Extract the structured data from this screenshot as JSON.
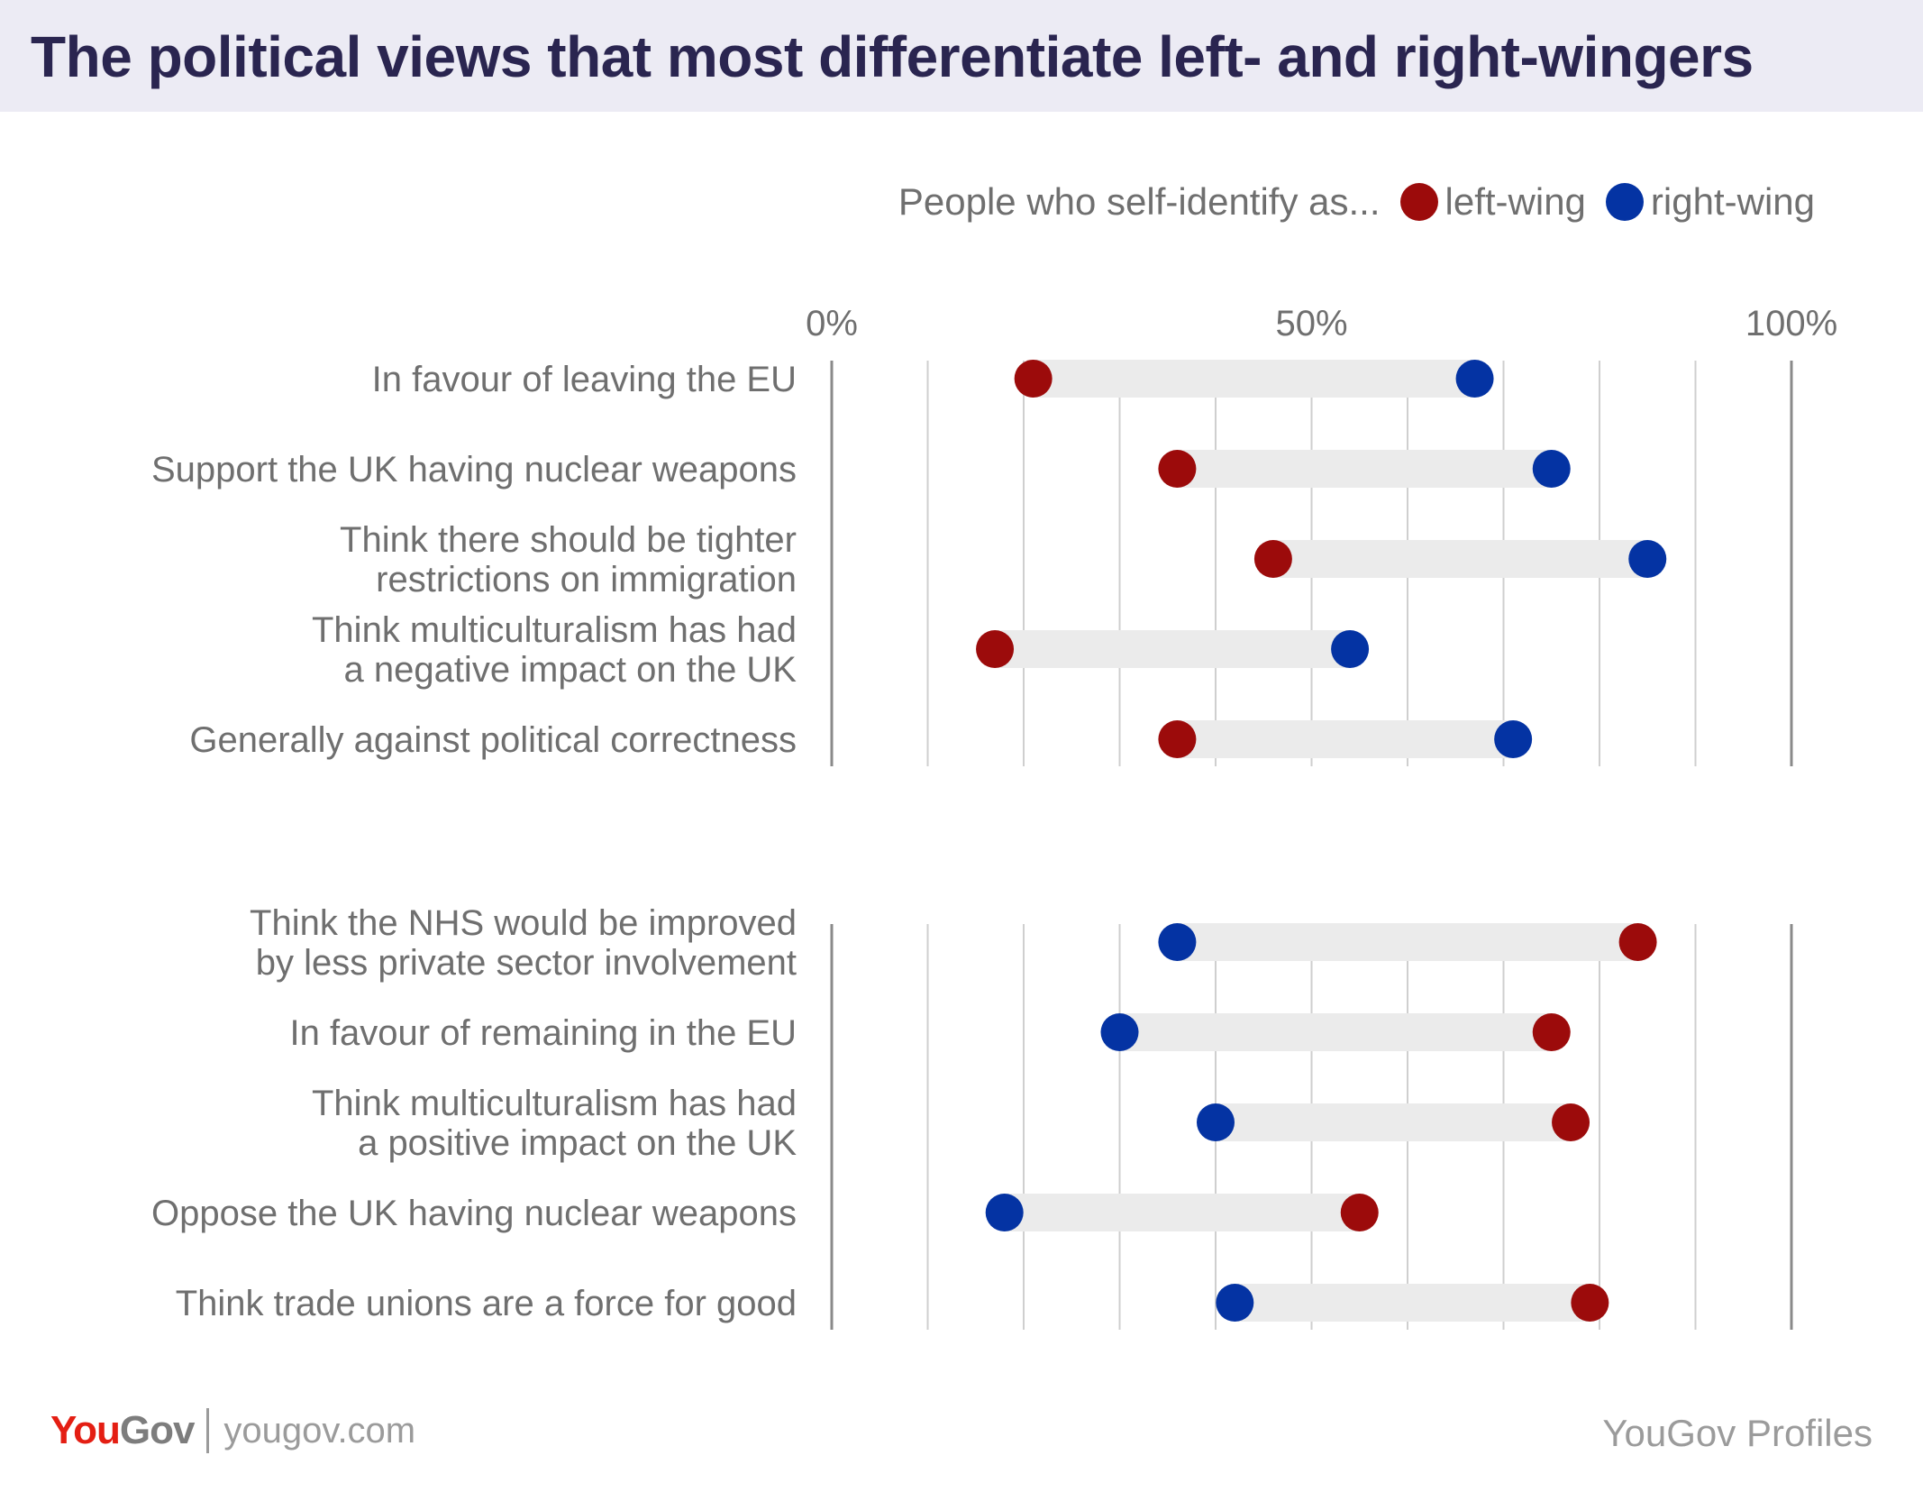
{
  "title": "The political views that most differentiate left- and right-wingers",
  "legend": {
    "prefix": "People who self-identify as...",
    "left_label": "left-wing",
    "right_label": "right-wing"
  },
  "colors": {
    "left": "#9c0b0b",
    "right": "#0433a3",
    "range_bar": "#ebebeb",
    "gridline": "#cfcfcf",
    "axis": "#8a8a8a",
    "label": "#6f6f6f"
  },
  "chart_data": {
    "type": "dumbbell",
    "title": "The political views that most differentiate left- and right-wingers",
    "xlabel": "",
    "ylabel": "",
    "xlim": [
      0,
      100
    ],
    "ticks": [
      0,
      50,
      100
    ],
    "tick_labels": [
      "0%",
      "50%",
      "100%"
    ],
    "series_names": [
      "left-wing",
      "right-wing"
    ],
    "groups": [
      {
        "rows": [
          {
            "lines": [
              "In favour of leaving the EU"
            ],
            "left": 21,
            "right": 67
          },
          {
            "lines": [
              "Support the UK having nuclear weapons"
            ],
            "left": 36,
            "right": 75
          },
          {
            "lines": [
              "Think there should be tighter",
              "restrictions on immigration"
            ],
            "left": 46,
            "right": 85
          },
          {
            "lines": [
              "Think multiculturalism has had",
              "a negative impact on the UK"
            ],
            "left": 17,
            "right": 54
          },
          {
            "lines": [
              "Generally against political correctness"
            ],
            "left": 36,
            "right": 71
          }
        ]
      },
      {
        "rows": [
          {
            "lines": [
              "Think the NHS would be improved",
              "by less private sector involvement"
            ],
            "left": 84,
            "right": 36
          },
          {
            "lines": [
              "In favour of remaining in the EU"
            ],
            "left": 75,
            "right": 30
          },
          {
            "lines": [
              "Think multiculturalism has had",
              "a positive impact on the UK"
            ],
            "left": 77,
            "right": 40
          },
          {
            "lines": [
              "Oppose the UK having nuclear weapons"
            ],
            "left": 55,
            "right": 18
          },
          {
            "lines": [
              "Think trade unions are a force for good"
            ],
            "left": 79,
            "right": 42
          }
        ]
      }
    ]
  },
  "footer": {
    "logo_you": "You",
    "logo_gov": "Gov",
    "url": "yougov.com",
    "source": "YouGov Profiles"
  }
}
